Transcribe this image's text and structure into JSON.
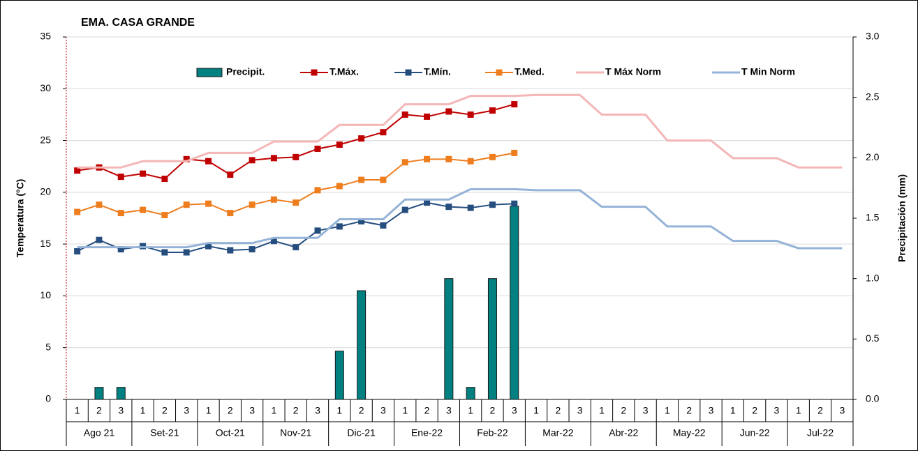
{
  "chart_data": {
    "type": "combo",
    "title": "EMA. CASA GRANDE",
    "y_label": "Temperatura (°C)",
    "y2_label": "Precipitación (mm)",
    "categories": [
      "1",
      "2",
      "3",
      "1",
      "2",
      "3",
      "1",
      "2",
      "3",
      "1",
      "2",
      "3",
      "1",
      "2",
      "3",
      "1",
      "2",
      "3",
      "1",
      "2",
      "3",
      "1",
      "2",
      "3",
      "1",
      "2",
      "3",
      "1",
      "2",
      "3",
      "1",
      "2",
      "3",
      "1",
      "2",
      "3"
    ],
    "groups": [
      "Ago 21",
      "Set-21",
      "Oct-21",
      "Nov-21",
      "Dic-21",
      "Ene-22",
      "Feb-22",
      "Mar-22",
      "Abr-22",
      "May-22",
      "Jun-22",
      "Jul-22"
    ],
    "ylim": [
      0,
      35
    ],
    "yticks": [
      0,
      5,
      10,
      15,
      20,
      25,
      30,
      35
    ],
    "y2lim": [
      0,
      3
    ],
    "y2ticks": [
      {
        "value": 0,
        "label": "0.0"
      },
      {
        "value": 0.5,
        "label": "0.5"
      },
      {
        "value": 1,
        "label": "1.0"
      },
      {
        "value": 1.5,
        "label": "1.5"
      },
      {
        "value": 2,
        "label": "2.0"
      },
      {
        "value": 2.5,
        "label": "2.5"
      },
      {
        "value": 3,
        "label": "3.0"
      }
    ],
    "grid": true,
    "legend": "top",
    "series": [
      {
        "name": "Precipit.",
        "type": "bar",
        "axis": "y2",
        "color": "#008080",
        "values": [
          0,
          0.1,
          0.1,
          0,
          0,
          0,
          0,
          0,
          0,
          0,
          0,
          0,
          0.4,
          0.9,
          0,
          0,
          0,
          1.0,
          0.1,
          1.0,
          1.6,
          null,
          null,
          null,
          null,
          null,
          null,
          null,
          null,
          null,
          null,
          null,
          null,
          null,
          null,
          null
        ]
      },
      {
        "name": "T.Máx.",
        "type": "line",
        "marker": true,
        "color": "#c00000",
        "values": [
          22.1,
          22.4,
          21.5,
          21.8,
          21.3,
          23.2,
          23.0,
          21.7,
          23.1,
          23.3,
          23.4,
          24.2,
          24.6,
          25.2,
          25.8,
          27.5,
          27.3,
          27.8,
          27.5,
          27.9,
          28.5,
          null,
          null,
          null,
          null,
          null,
          null,
          null,
          null,
          null,
          null,
          null,
          null,
          null,
          null,
          null
        ]
      },
      {
        "name": "T.Mín.",
        "type": "line",
        "marker": true,
        "color": "#254e7f",
        "values": [
          14.3,
          15.4,
          14.5,
          14.8,
          14.2,
          14.2,
          14.8,
          14.4,
          14.5,
          15.3,
          14.7,
          16.3,
          16.7,
          17.2,
          16.8,
          18.3,
          19.0,
          18.6,
          18.5,
          18.8,
          18.9,
          null,
          null,
          null,
          null,
          null,
          null,
          null,
          null,
          null,
          null,
          null,
          null,
          null,
          null,
          null
        ]
      },
      {
        "name": "T.Med.",
        "type": "line",
        "marker": true,
        "color": "#ee7d1e",
        "values": [
          18.1,
          18.8,
          18.0,
          18.3,
          17.8,
          18.8,
          18.9,
          18.0,
          18.8,
          19.3,
          19.0,
          20.2,
          20.6,
          21.2,
          21.2,
          22.9,
          23.2,
          23.2,
          23.0,
          23.4,
          23.8,
          null,
          null,
          null,
          null,
          null,
          null,
          null,
          null,
          null,
          null,
          null,
          null,
          null,
          null,
          null
        ]
      },
      {
        "name": "T Máx Norm",
        "type": "line",
        "marker": false,
        "color": "#f4b6b6",
        "values": [
          22.4,
          22.4,
          22.4,
          23.0,
          23.0,
          23.0,
          23.8,
          23.8,
          23.8,
          24.9,
          24.9,
          24.9,
          26.5,
          26.5,
          26.5,
          28.5,
          28.5,
          28.5,
          29.3,
          29.3,
          29.3,
          29.4,
          29.4,
          29.4,
          27.5,
          27.5,
          27.5,
          25.0,
          25.0,
          25.0,
          23.3,
          23.3,
          23.3,
          22.4,
          22.4,
          22.4
        ]
      },
      {
        "name": "T Min Norm",
        "type": "line",
        "marker": false,
        "color": "#95b3d7",
        "values": [
          14.7,
          14.7,
          14.7,
          14.7,
          14.7,
          14.7,
          15.1,
          15.1,
          15.1,
          15.6,
          15.6,
          15.6,
          17.4,
          17.4,
          17.4,
          19.3,
          19.3,
          19.3,
          20.3,
          20.3,
          20.3,
          20.2,
          20.2,
          20.2,
          18.6,
          18.6,
          18.6,
          16.7,
          16.7,
          16.7,
          15.3,
          15.3,
          15.3,
          14.6,
          14.6,
          14.6
        ]
      }
    ]
  }
}
